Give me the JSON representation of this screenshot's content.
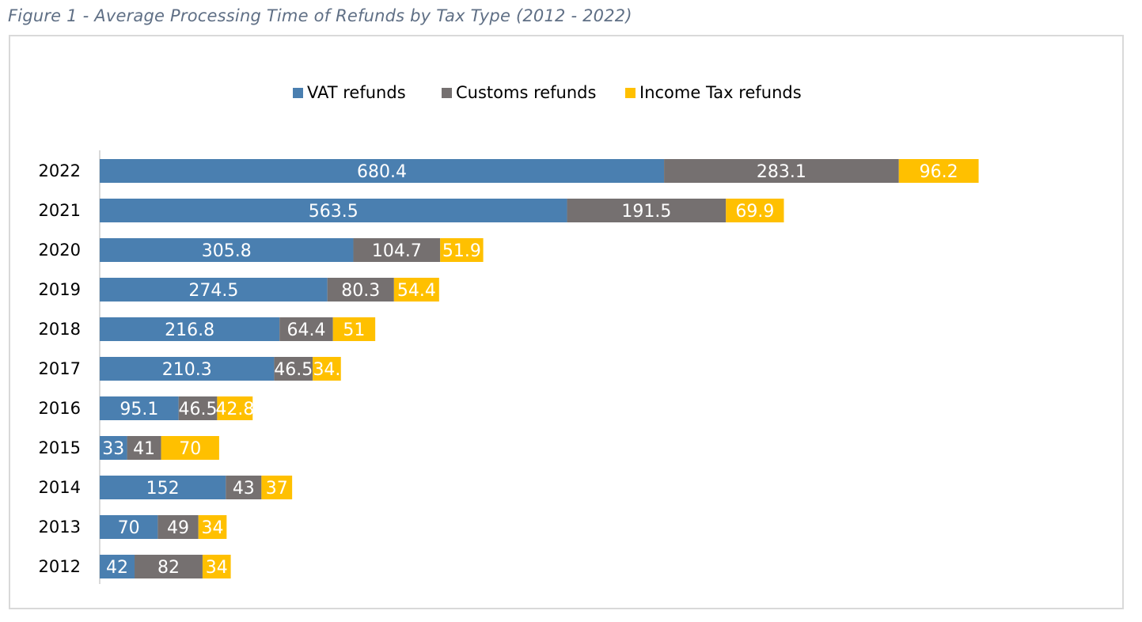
{
  "figure": {
    "title": "Figure 1 - Average Processing Time of Refunds by Tax Type (2012 - 2022)"
  },
  "chart_data": {
    "type": "bar",
    "orientation": "horizontal",
    "stacked": true,
    "title": "",
    "xlabel": "",
    "ylabel": "",
    "legend_position": "top",
    "grid": false,
    "categories": [
      "2022",
      "2021",
      "2020",
      "2019",
      "2018",
      "2017",
      "2016",
      "2015",
      "2014",
      "2013",
      "2012"
    ],
    "series": [
      {
        "name": "VAT refunds",
        "color": "#4a7fb0",
        "values": [
          680.4,
          563.5,
          305.8,
          274.5,
          216.8,
          210.3,
          95.1,
          33,
          152,
          70,
          42
        ],
        "labels": [
          "680.4",
          "563.5",
          "305.8",
          "274.5",
          "216.8",
          "210.3",
          "95.1",
          "33",
          "152",
          "70",
          "42"
        ]
      },
      {
        "name": "Customs refunds",
        "color": "#757070",
        "values": [
          283.1,
          191.5,
          104.7,
          80.3,
          64.4,
          46.5,
          46.5,
          41,
          43,
          49,
          82
        ],
        "labels": [
          "283.1",
          "191.5",
          "104.7",
          "80.3",
          "64.4",
          "46.5",
          "46.5",
          "41",
          "43",
          "49",
          "82"
        ]
      },
      {
        "name": "Income Tax refunds",
        "color": "#ffc000",
        "values": [
          96.2,
          69.9,
          51.9,
          54.4,
          51,
          34,
          42.8,
          70,
          37,
          34,
          34
        ],
        "labels": [
          "96.2",
          "69.9",
          "51.9",
          "54.4",
          "51",
          "34.",
          "42.8",
          "70",
          "37",
          "34",
          "34"
        ]
      }
    ]
  }
}
